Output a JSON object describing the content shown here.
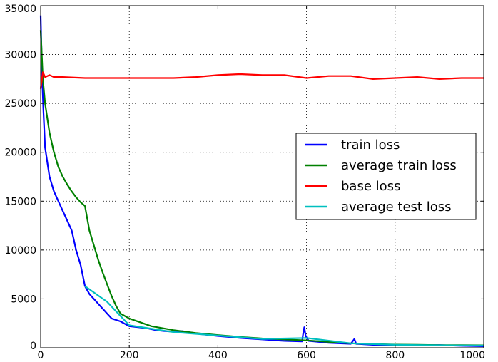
{
  "chart_data": {
    "type": "line",
    "title": "",
    "xlabel": "",
    "ylabel": "",
    "xlim": [
      0,
      1000
    ],
    "ylim": [
      0,
      35000
    ],
    "xticks": [
      0,
      200,
      400,
      600,
      800,
      1000
    ],
    "yticks": [
      0,
      5000,
      10000,
      15000,
      20000,
      25000,
      30000,
      35000
    ],
    "xtick_labels": [
      "0",
      "200",
      "400",
      "600",
      "800",
      "1000"
    ],
    "ytick_labels": [
      "0",
      "5000",
      "10000",
      "15000",
      "20000",
      "25000",
      "30000",
      "35000"
    ],
    "grid": true,
    "legend_position": "center-right",
    "series": [
      {
        "name": "train loss",
        "color": "#0000ff",
        "points": [
          [
            0,
            34000
          ],
          [
            3,
            28000
          ],
          [
            6,
            24500
          ],
          [
            10,
            20500
          ],
          [
            15,
            19000
          ],
          [
            20,
            17500
          ],
          [
            30,
            16000
          ],
          [
            40,
            15000
          ],
          [
            50,
            14000
          ],
          [
            60,
            13000
          ],
          [
            70,
            12000
          ],
          [
            80,
            10000
          ],
          [
            90,
            8500
          ],
          [
            100,
            6300
          ],
          [
            110,
            5500
          ],
          [
            120,
            5000
          ],
          [
            130,
            4500
          ],
          [
            140,
            4000
          ],
          [
            150,
            3500
          ],
          [
            160,
            3000
          ],
          [
            180,
            2700
          ],
          [
            200,
            2200
          ],
          [
            220,
            2100
          ],
          [
            240,
            2000
          ],
          [
            260,
            1800
          ],
          [
            280,
            1700
          ],
          [
            300,
            1650
          ],
          [
            320,
            1700
          ],
          [
            340,
            1550
          ],
          [
            360,
            1400
          ],
          [
            380,
            1300
          ],
          [
            400,
            1200
          ],
          [
            450,
            1000
          ],
          [
            500,
            850
          ],
          [
            550,
            700
          ],
          [
            590,
            650
          ],
          [
            592,
            1300
          ],
          [
            595,
            2100
          ],
          [
            598,
            1200
          ],
          [
            605,
            700
          ],
          [
            650,
            500
          ],
          [
            700,
            400
          ],
          [
            708,
            900
          ],
          [
            712,
            400
          ],
          [
            750,
            300
          ],
          [
            800,
            300
          ],
          [
            850,
            250
          ],
          [
            900,
            280
          ],
          [
            950,
            200
          ],
          [
            1000,
            150
          ]
        ]
      },
      {
        "name": "average train loss",
        "color": "#008000",
        "points": [
          [
            0,
            32500
          ],
          [
            5,
            27500
          ],
          [
            10,
            25000
          ],
          [
            20,
            22000
          ],
          [
            30,
            20000
          ],
          [
            40,
            18500
          ],
          [
            50,
            17500
          ],
          [
            60,
            16700
          ],
          [
            70,
            16000
          ],
          [
            80,
            15400
          ],
          [
            90,
            14900
          ],
          [
            100,
            14500
          ],
          [
            110,
            12000
          ],
          [
            120,
            10500
          ],
          [
            130,
            9000
          ],
          [
            140,
            7700
          ],
          [
            150,
            6500
          ],
          [
            160,
            5300
          ],
          [
            170,
            4300
          ],
          [
            180,
            3500
          ],
          [
            200,
            3000
          ],
          [
            250,
            2200
          ],
          [
            300,
            1800
          ],
          [
            350,
            1500
          ],
          [
            400,
            1300
          ],
          [
            450,
            1100
          ],
          [
            500,
            950
          ],
          [
            550,
            850
          ],
          [
            600,
            750
          ],
          [
            650,
            600
          ],
          [
            700,
            450
          ],
          [
            750,
            380
          ],
          [
            800,
            320
          ],
          [
            850,
            300
          ],
          [
            900,
            270
          ],
          [
            950,
            260
          ],
          [
            1000,
            250
          ]
        ]
      },
      {
        "name": "base loss",
        "color": "#ff0000",
        "points": [
          [
            0,
            26500
          ],
          [
            5,
            28200
          ],
          [
            10,
            27700
          ],
          [
            20,
            27900
          ],
          [
            30,
            27700
          ],
          [
            50,
            27700
          ],
          [
            100,
            27600
          ],
          [
            150,
            27600
          ],
          [
            200,
            27600
          ],
          [
            250,
            27600
          ],
          [
            300,
            27600
          ],
          [
            350,
            27700
          ],
          [
            400,
            27900
          ],
          [
            450,
            28000
          ],
          [
            500,
            27900
          ],
          [
            550,
            27900
          ],
          [
            600,
            27600
          ],
          [
            650,
            27800
          ],
          [
            700,
            27800
          ],
          [
            750,
            27500
          ],
          [
            800,
            27600
          ],
          [
            850,
            27700
          ],
          [
            900,
            27500
          ],
          [
            950,
            27600
          ],
          [
            1000,
            27600
          ]
        ]
      },
      {
        "name": "average test loss",
        "color": "#00bfbf",
        "points": [
          [
            100,
            6300
          ],
          [
            150,
            4700
          ],
          [
            200,
            2300
          ],
          [
            300,
            1600
          ],
          [
            400,
            1250
          ],
          [
            500,
            900
          ],
          [
            600,
            1000
          ],
          [
            700,
            450
          ],
          [
            800,
            300
          ],
          [
            900,
            250
          ],
          [
            1000,
            220
          ]
        ]
      }
    ]
  }
}
